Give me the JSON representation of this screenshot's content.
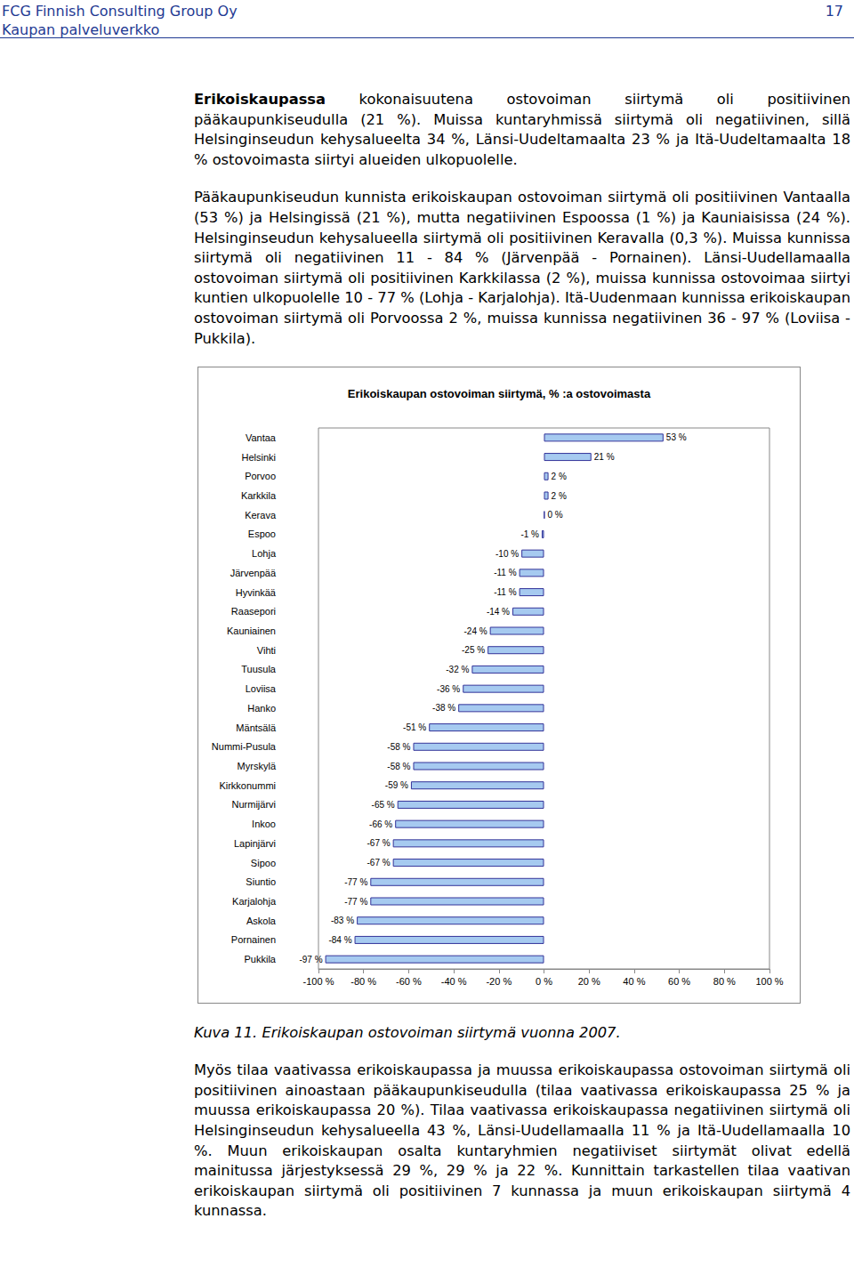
{
  "header": {
    "company": "FCG Finnish Consulting Group Oy",
    "page_number": "17",
    "report": "Kaupan palveluverkko"
  },
  "text_before": [
    {
      "bold": "Erikoiskaupassa",
      "text": " kokonaisuutena ostovoiman siirtymä oli positiivinen pääkaupunkiseudulla (21 %). Muissa kuntaryhmissä siirtymä oli negatiivinen, sillä Helsinginseudun kehysalueelta 34 %, Länsi-Uudeltamaalta 23 % ja Itä-Uudeltamaalta 18 % ostovoimasta siirtyi alueiden ulkopuolelle."
    },
    {
      "text": "Pääkaupunkiseudun kunnista erikoiskaupan ostovoiman siirtymä oli positiivinen Vantaalla (53 %) ja Helsingissä (21 %), mutta negatiivinen Espoossa (1 %) ja Kauniaisissa (24 %). Helsinginseudun kehysalueella siirtymä oli positiivinen Keravalla (0,3 %). Muissa kunnissa siirtymä oli negatiivinen 11 - 84 % (Järvenpää - Pornainen). Länsi-Uudellamaalla ostovoiman siirtymä oli positiivinen Karkkilassa (2 %), muissa kunnissa ostovoimaa siirtyi kuntien ulkopuolelle 10 - 77 % (Lohja - Karjalohja). Itä-Uudenmaan kunnissa erikoiskaupan ostovoiman siirtymä oli Porvoossa 2 %, muissa kunnissa negatiivinen 36 - 97 % (Loviisa - Pukkila)."
    }
  ],
  "chart_data": {
    "type": "bar",
    "orientation": "horizontal",
    "title": "Erikoiskaupan ostovoiman siirtymä, % :a ostovoimasta",
    "categories": [
      "Vantaa",
      "Helsinki",
      "Porvoo",
      "Karkkila",
      "Kerava",
      "Espoo",
      "Lohja",
      "Järvenpää",
      "Hyvinkää",
      "Raasepori",
      "Kauniainen",
      "Vihti",
      "Tuusula",
      "Loviisa",
      "Hanko",
      "Mäntsälä",
      "Nummi-Pusula",
      "Myrskylä",
      "Kirkkonummi",
      "Nurmijärvi",
      "Inkoo",
      "Lapinjärvi",
      "Sipoo",
      "Siuntio",
      "Karjalohja",
      "Askola",
      "Pornainen",
      "Pukkila"
    ],
    "values": [
      53,
      21,
      2,
      2,
      0.3,
      -1,
      -10,
      -11,
      -11,
      -14,
      -24,
      -25,
      -32,
      -36,
      -38,
      -51,
      -58,
      -58,
      -59,
      -65,
      -66,
      -67,
      -67,
      -77,
      -77,
      -83,
      -84,
      -97
    ],
    "value_labels": [
      "53 %",
      "21 %",
      "2 %",
      "2 %",
      "0 %",
      "-1 %",
      "-10 %",
      "-11 %",
      "-11 %",
      "-14 %",
      "-24 %",
      "-25 %",
      "-32 %",
      "-36 %",
      "-38 %",
      "-51 %",
      "-58 %",
      "-58 %",
      "-59 %",
      "-65 %",
      "-66 %",
      "-67 %",
      "-67 %",
      "-77 %",
      "-77 %",
      "-83 %",
      "-84 %",
      "-97 %"
    ],
    "color": "#a6caf0",
    "xlim": [
      -100,
      100
    ],
    "xticks": [
      {
        "value": -100,
        "label": "-100 %"
      },
      {
        "value": -80,
        "label": "-80 %"
      },
      {
        "value": -60,
        "label": "-60 %"
      },
      {
        "value": -40,
        "label": "-40 %"
      },
      {
        "value": -20,
        "label": "-20 %"
      },
      {
        "value": 0,
        "label": "0 %"
      },
      {
        "value": 20,
        "label": "20 %"
      },
      {
        "value": 40,
        "label": "40 %"
      },
      {
        "value": 60,
        "label": "60 %"
      },
      {
        "value": 80,
        "label": "80 %"
      },
      {
        "value": 100,
        "label": "100 %"
      }
    ],
    "grid": false,
    "data_labels": true
  },
  "caption": "Kuva 11. Erikoiskaupan ostovoiman siirtymä vuonna 2007.",
  "text_after": [
    {
      "text": "Myös tilaa vaativassa erikoiskaupassa ja muussa erikoiskaupassa ostovoiman siirtymä oli positiivinen ainoastaan pääkaupunkiseudulla (tilaa vaativassa erikoiskaupassa 25 % ja muussa erikoiskaupassa 20 %). Tilaa vaativassa erikoiskaupassa negatiivinen siirtymä oli Helsinginseudun kehysalueella 43 %, Länsi-Uudellamaalla 11 % ja Itä-Uudellamaalla 10 %. Muun erikoiskaupan osalta kuntaryhmien negatiiviset siirtymät olivat edellä mainitussa järjestyksessä 29 %, 29 % ja 22 %. Kunnittain tarkastellen tilaa vaativan erikoiskaupan siirtymä oli positiivinen 7 kunnassa ja muun erikoiskaupan siirtymä 4 kunnassa."
    }
  ]
}
